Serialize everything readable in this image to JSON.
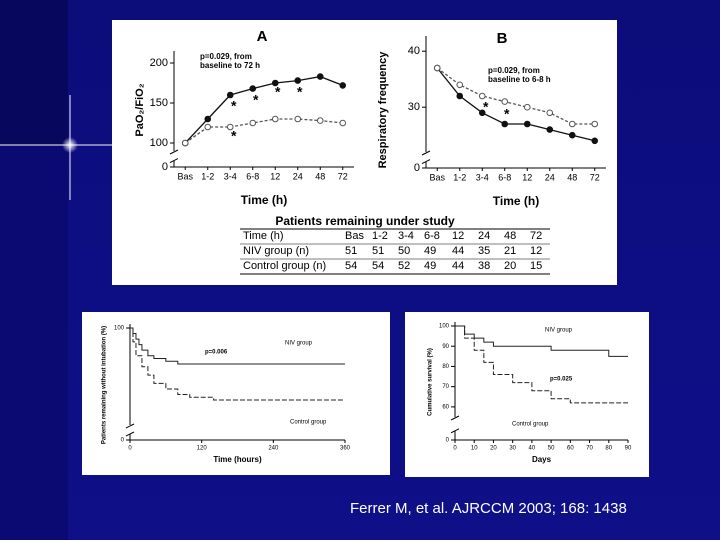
{
  "chart_data": [
    {
      "type": "line",
      "title": "A",
      "categories": [
        "Bas",
        "1-2",
        "3-4",
        "6-8",
        "12",
        "24",
        "48",
        "72"
      ],
      "series": [
        {
          "name": "NIV group",
          "color": "#111111",
          "marker": "filled",
          "values": [
            100,
            130,
            160,
            168,
            175,
            178,
            183,
            172
          ]
        },
        {
          "name": "Control group",
          "color": "#555555",
          "marker": "open",
          "values": [
            100,
            120,
            120,
            125,
            130,
            130,
            128,
            125
          ]
        }
      ],
      "ylim": [
        0,
        210
      ],
      "ybreak": [
        0,
        90
      ],
      "yticks": [
        0,
        100,
        150,
        200
      ],
      "xlabel": "Time (h)",
      "ylabel": "PaO₂/FiO₂",
      "annotations": [
        "p=0.029, from",
        "baseline to 72 h",
        "*",
        "*",
        "*",
        "*",
        "*"
      ]
    },
    {
      "type": "line",
      "title": "B",
      "categories": [
        "Bas",
        "1-2",
        "3-4",
        "6-8",
        "12",
        "24",
        "48",
        "72"
      ],
      "series": [
        {
          "name": "NIV group",
          "color": "#111111",
          "marker": "filled",
          "values": [
            37,
            32,
            29,
            27,
            27,
            26,
            25,
            24
          ]
        },
        {
          "name": "Control group",
          "color": "#555555",
          "marker": "open",
          "values": [
            37,
            34,
            32,
            31,
            30,
            29,
            27,
            27
          ]
        }
      ],
      "ylim": [
        0,
        42
      ],
      "ybreak": [
        0,
        22
      ],
      "yticks": [
        0,
        30,
        40
      ],
      "xlabel": "Time (h)",
      "ylabel": "Respiratory frequency",
      "annotations": [
        "p=0.029, from",
        "baseline to 6-8 h",
        "*",
        "*"
      ]
    },
    {
      "type": "step",
      "series": [
        {
          "name": "NIV group",
          "color": "#222222",
          "dash": false,
          "x": [
            0,
            5,
            10,
            15,
            20,
            30,
            40,
            60,
            80,
            120,
            360
          ],
          "values": [
            100,
            96,
            92,
            88,
            84,
            80,
            78,
            76,
            74,
            74,
            74
          ]
        },
        {
          "name": "Control group",
          "color": "#222222",
          "dash": true,
          "x": [
            0,
            5,
            10,
            20,
            30,
            40,
            60,
            80,
            100,
            140,
            360
          ],
          "values": [
            100,
            90,
            80,
            72,
            66,
            60,
            56,
            52,
            50,
            48,
            48
          ]
        }
      ],
      "xlim": [
        0,
        360
      ],
      "xticks": [
        0,
        120,
        240,
        360
      ],
      "ylim": [
        0,
        100
      ],
      "ybreak": [
        0,
        30
      ],
      "yticks": [
        0,
        100
      ],
      "xlabel": "Time (hours)",
      "ylabel": "Patients remaining without intubation (%)",
      "annotations": [
        "p=0.006"
      ]
    },
    {
      "type": "step",
      "series": [
        {
          "name": "NIV group",
          "color": "#222222",
          "dash": false,
          "x": [
            0,
            5,
            10,
            15,
            20,
            40,
            50,
            80,
            90
          ],
          "values": [
            100,
            96,
            94,
            92,
            90,
            90,
            88,
            85,
            85
          ]
        },
        {
          "name": "Control group",
          "color": "#222222",
          "dash": true,
          "x": [
            0,
            5,
            10,
            15,
            20,
            30,
            40,
            50,
            60,
            90
          ],
          "values": [
            100,
            94,
            88,
            82,
            76,
            72,
            68,
            64,
            62,
            62
          ]
        }
      ],
      "xlim": [
        0,
        90
      ],
      "xticks": [
        0,
        10,
        20,
        30,
        40,
        50,
        60,
        70,
        80,
        90
      ],
      "ylim": [
        0,
        100
      ],
      "ybreak": [
        0,
        55
      ],
      "yticks": [
        0,
        60,
        70,
        80,
        90,
        100
      ],
      "xlabel": "Days",
      "ylabel": "Cumulative survival (%)",
      "annotations": [
        "p=0.025"
      ]
    }
  ],
  "table": {
    "title": "Patients remaining under study",
    "rows": [
      [
        "Time (h)",
        "Bas",
        "1-2",
        "3-4",
        "6-8",
        "12",
        "24",
        "48",
        "72"
      ],
      [
        "NIV group (n)",
        "51",
        "51",
        "50",
        "49",
        "44",
        "35",
        "21",
        "12"
      ],
      [
        "Control group (n)",
        "54",
        "54",
        "52",
        "49",
        "44",
        "38",
        "20",
        "15"
      ]
    ]
  },
  "citation": "Ferrer M, et al. AJRCCM 2003; 168: 1438"
}
